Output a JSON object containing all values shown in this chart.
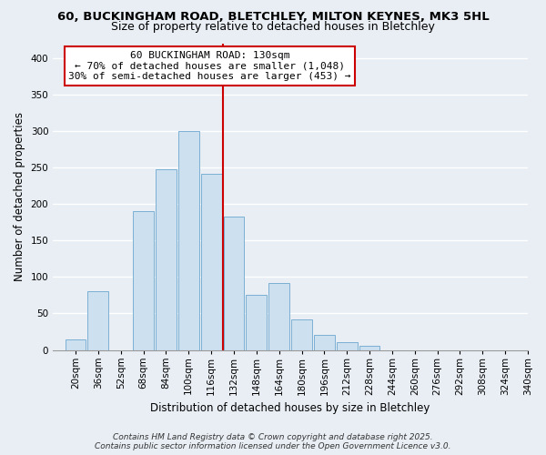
{
  "title_line1": "60, BUCKINGHAM ROAD, BLETCHLEY, MILTON KEYNES, MK3 5HL",
  "title_line2": "Size of property relative to detached houses in Bletchley",
  "xlabel": "Distribution of detached houses by size in Bletchley",
  "ylabel": "Number of detached properties",
  "bin_labels": [
    "20sqm",
    "36sqm",
    "52sqm",
    "68sqm",
    "84sqm",
    "100sqm",
    "116sqm",
    "132sqm",
    "148sqm",
    "164sqm",
    "180sqm",
    "196sqm",
    "212sqm",
    "228sqm",
    "244sqm",
    "260sqm",
    "276sqm",
    "292sqm",
    "308sqm",
    "324sqm",
    "340sqm"
  ],
  "bin_edges": [
    20,
    36,
    52,
    68,
    84,
    100,
    116,
    132,
    148,
    164,
    180,
    196,
    212,
    228,
    244,
    260,
    276,
    292,
    308,
    324,
    340
  ],
  "bar_heights": [
    15,
    80,
    0,
    190,
    248,
    300,
    241,
    183,
    75,
    92,
    42,
    21,
    11,
    6,
    0,
    0,
    0,
    0,
    0,
    0
  ],
  "bar_color": "#cde0f0",
  "bar_edgecolor": "#7ab0d4",
  "property_line_x": 132,
  "property_line_color": "#cc0000",
  "ylim": [
    0,
    420
  ],
  "yticks": [
    0,
    50,
    100,
    150,
    200,
    250,
    300,
    350,
    400
  ],
  "annotation_title": "60 BUCKINGHAM ROAD: 130sqm",
  "annotation_line2": "← 70% of detached houses are smaller (1,048)",
  "annotation_line3": "30% of semi-detached houses are larger (453) →",
  "annotation_box_facecolor": "#ffffff",
  "annotation_box_edgecolor": "#cc0000",
  "footer_line1": "Contains HM Land Registry data © Crown copyright and database right 2025.",
  "footer_line2": "Contains public sector information licensed under the Open Government Licence v3.0.",
  "fig_background_color": "#e8eef4",
  "plot_background_color": "#e8eef4",
  "grid_color": "#ffffff",
  "title_fontsize": 9.5,
  "subtitle_fontsize": 9,
  "axis_label_fontsize": 8.5,
  "tick_fontsize": 7.5,
  "annotation_fontsize": 8,
  "footer_fontsize": 6.5
}
